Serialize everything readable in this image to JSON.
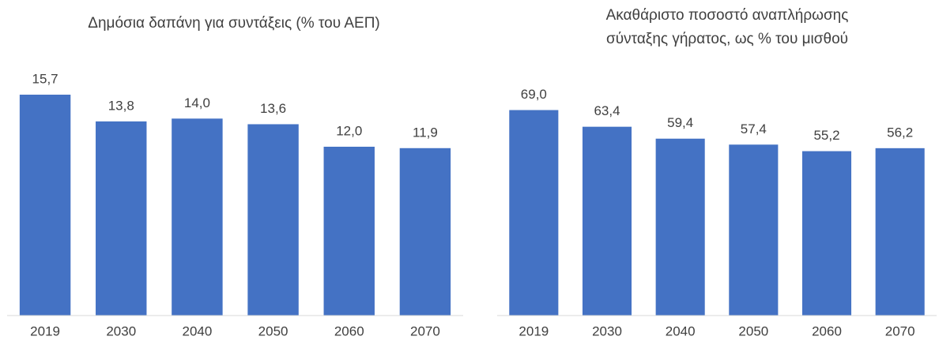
{
  "chart_data": [
    {
      "type": "bar",
      "title": [
        "Δημόσια δαπάνη για συντάξεις (% του ΑΕΠ)"
      ],
      "categories": [
        "2019",
        "2030",
        "2040",
        "2050",
        "2060",
        "2070"
      ],
      "values": [
        15.7,
        13.8,
        14.0,
        13.6,
        12.0,
        11.9
      ],
      "value_labels": [
        "15,7",
        "13,8",
        "14,0",
        "13,6",
        "12,0",
        "11,9"
      ],
      "color": "#4472c4",
      "ylim": [
        0,
        18
      ]
    },
    {
      "type": "bar",
      "title": [
        "Ακαθάριστο ποσοστό αναπλήρωσης",
        "σύνταξης γήρατος, ως % του μισθού"
      ],
      "categories": [
        "2019",
        "2030",
        "2040",
        "2050",
        "2060",
        "2070"
      ],
      "values": [
        69.0,
        63.4,
        59.4,
        57.4,
        55.2,
        56.2
      ],
      "value_labels": [
        "69,0",
        "63,4",
        "59,4",
        "57,4",
        "55,2",
        "56,2"
      ],
      "color": "#4472c4",
      "ylim": [
        0,
        80
      ]
    }
  ]
}
